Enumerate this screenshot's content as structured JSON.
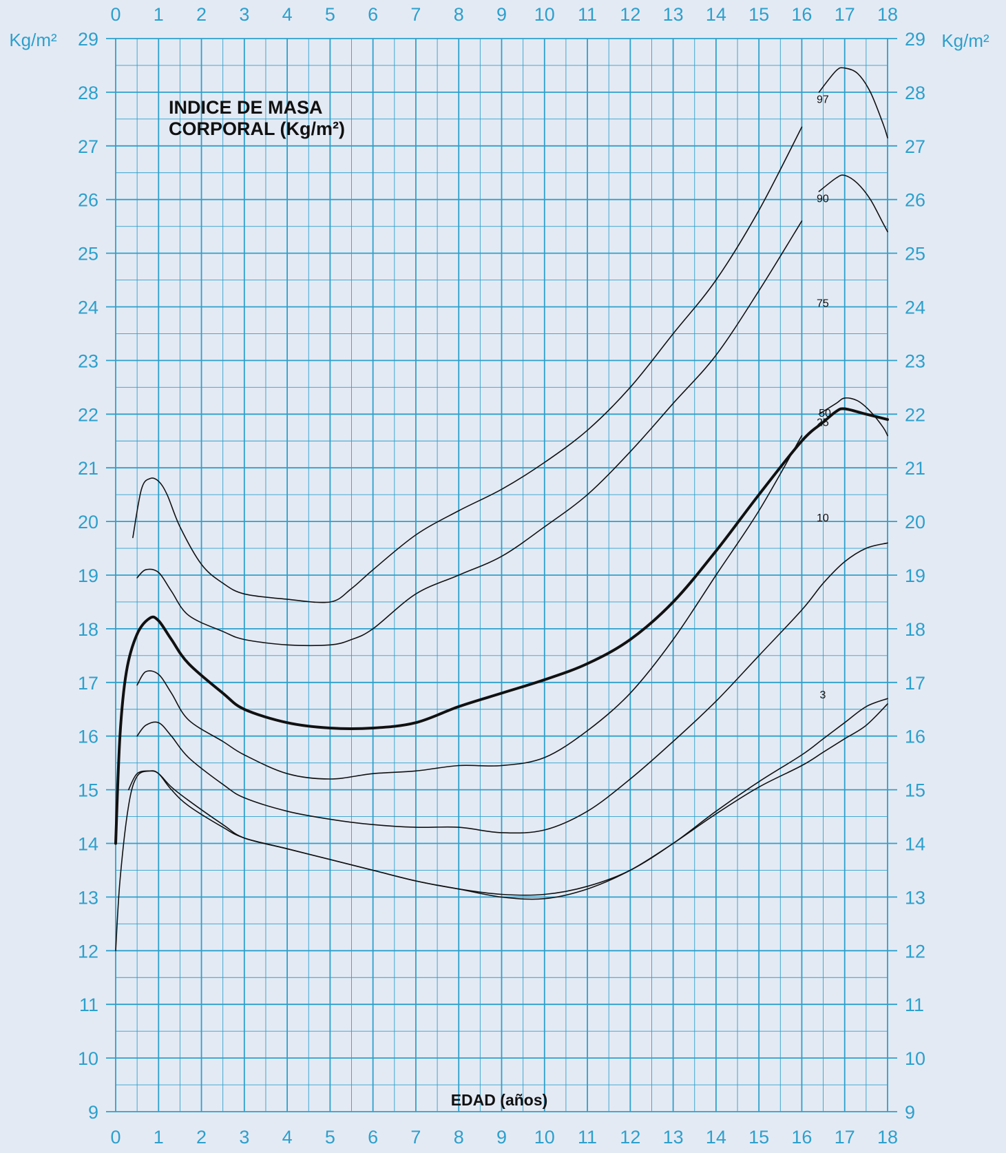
{
  "chart_data": {
    "type": "line",
    "title_lines": [
      "INDICE DE MASA",
      "CORPORAL (Kg/m²)"
    ],
    "xlabel": "EDAD (años)",
    "unit_left": "Kg/m²",
    "unit_right": "Kg/m²",
    "xlim": [
      0,
      18
    ],
    "ylim": [
      9,
      29
    ],
    "x_ticks": [
      "0",
      "1",
      "2",
      "3",
      "4",
      "5",
      "6",
      "7",
      "8",
      "9",
      "10",
      "11",
      "12",
      "13",
      "14",
      "15",
      "16",
      "17",
      "18"
    ],
    "y_ticks": [
      "9",
      "10",
      "11",
      "12",
      "13",
      "14",
      "15",
      "16",
      "17",
      "18",
      "19",
      "20",
      "21",
      "22",
      "23",
      "24",
      "25",
      "26",
      "27",
      "28",
      "29"
    ],
    "grid": true,
    "colors": {
      "background": "#e4eaf4",
      "grid": "#2ca0cc",
      "axis_text": "#2ca0cc",
      "curve": "#111111"
    },
    "series": [
      {
        "name": "97",
        "label_at": [
          16.2,
          27.8
        ],
        "segments": [
          [
            [
              0.4,
              19.7
            ],
            [
              0.6,
              20.6
            ],
            [
              0.8,
              20.8
            ],
            [
              1.0,
              20.75
            ],
            [
              1.2,
              20.5
            ],
            [
              1.5,
              19.9
            ],
            [
              2.0,
              19.2
            ],
            [
              2.5,
              18.85
            ],
            [
              3,
              18.65
            ],
            [
              4,
              18.55
            ],
            [
              5,
              18.5
            ],
            [
              5.5,
              18.75
            ],
            [
              6,
              19.1
            ],
            [
              7,
              19.75
            ],
            [
              8,
              20.2
            ],
            [
              9,
              20.6
            ],
            [
              10,
              21.1
            ],
            [
              11,
              21.7
            ],
            [
              12,
              22.5
            ],
            [
              13,
              23.5
            ],
            [
              14,
              24.5
            ],
            [
              15,
              25.8
            ],
            [
              16,
              27.35
            ]
          ],
          [
            [
              16.4,
              28.0
            ],
            [
              16.8,
              28.4
            ],
            [
              17.0,
              28.45
            ],
            [
              17.3,
              28.35
            ],
            [
              17.6,
              28.0
            ],
            [
              17.9,
              27.4
            ],
            [
              18.0,
              27.15
            ]
          ]
        ]
      },
      {
        "name": "90",
        "label_at": [
          16.2,
          25.95
        ],
        "segments": [
          [
            [
              0.5,
              18.95
            ],
            [
              0.7,
              19.1
            ],
            [
              1.0,
              19.05
            ],
            [
              1.3,
              18.7
            ],
            [
              1.7,
              18.25
            ],
            [
              2.5,
              17.95
            ],
            [
              3,
              17.8
            ],
            [
              4,
              17.7
            ],
            [
              5,
              17.7
            ],
            [
              5.5,
              17.8
            ],
            [
              6,
              18.0
            ],
            [
              7,
              18.65
            ],
            [
              8,
              19.0
            ],
            [
              9,
              19.35
            ],
            [
              10,
              19.9
            ],
            [
              11,
              20.5
            ],
            [
              12,
              21.3
            ],
            [
              13,
              22.2
            ],
            [
              14,
              23.1
            ],
            [
              15,
              24.3
            ],
            [
              16,
              25.6
            ]
          ],
          [
            [
              16.4,
              26.15
            ],
            [
              16.8,
              26.4
            ],
            [
              17.0,
              26.45
            ],
            [
              17.3,
              26.3
            ],
            [
              17.6,
              26.0
            ],
            [
              17.9,
              25.55
            ],
            [
              18.0,
              25.4
            ]
          ]
        ]
      },
      {
        "name": "75",
        "label_at": [
          16.2,
          24.0
        ],
        "segments": [
          [
            [
              0.5,
              16.95
            ],
            [
              0.7,
              17.2
            ],
            [
              1.0,
              17.15
            ],
            [
              1.3,
              16.8
            ],
            [
              1.7,
              16.3
            ],
            [
              2.5,
              15.9
            ],
            [
              3,
              15.65
            ],
            [
              4,
              15.3
            ],
            [
              5,
              15.2
            ],
            [
              6,
              15.3
            ],
            [
              7,
              15.35
            ],
            [
              8,
              15.45
            ],
            [
              9,
              15.45
            ],
            [
              10,
              15.6
            ],
            [
              11,
              16.1
            ],
            [
              12,
              16.8
            ],
            [
              13,
              17.8
            ],
            [
              14,
              19.0
            ],
            [
              15,
              20.2
            ],
            [
              16,
              21.6
            ]
          ],
          [
            [
              16.4,
              22.0
            ],
            [
              16.8,
              22.2
            ],
            [
              17.0,
              22.3
            ],
            [
              17.3,
              22.25
            ],
            [
              17.6,
              22.05
            ],
            [
              17.9,
              21.75
            ],
            [
              18.0,
              21.6
            ]
          ]
        ]
      },
      {
        "name": "50",
        "label_at": [
          16.25,
          21.95
        ],
        "segments": [
          [
            [
              0.0,
              14.0
            ],
            [
              0.1,
              16.0
            ],
            [
              0.25,
              17.2
            ],
            [
              0.5,
              17.9
            ],
            [
              0.8,
              18.2
            ],
            [
              1.0,
              18.15
            ],
            [
              1.3,
              17.8
            ],
            [
              1.7,
              17.35
            ],
            [
              2.5,
              16.8
            ],
            [
              3,
              16.5
            ],
            [
              4,
              16.25
            ],
            [
              5,
              16.15
            ],
            [
              6,
              16.15
            ],
            [
              7,
              16.25
            ],
            [
              8,
              16.55
            ],
            [
              9,
              16.8
            ],
            [
              10,
              17.05
            ],
            [
              11,
              17.35
            ],
            [
              12,
              17.8
            ],
            [
              13,
              18.5
            ],
            [
              14,
              19.45
            ],
            [
              15,
              20.5
            ],
            [
              16,
              21.5
            ],
            [
              16.5,
              21.85
            ],
            [
              16.8,
              22.05
            ],
            [
              17.0,
              22.1
            ],
            [
              17.5,
              22.0
            ],
            [
              18.0,
              21.9
            ]
          ]
        ]
      },
      {
        "name": "25",
        "label_at": [
          16.2,
          21.78
        ],
        "segments": [
          [
            [
              0.5,
              16.0
            ],
            [
              0.7,
              16.2
            ],
            [
              1.0,
              16.25
            ],
            [
              1.3,
              16.0
            ],
            [
              1.7,
              15.6
            ],
            [
              2.5,
              15.1
            ],
            [
              3,
              14.85
            ],
            [
              4,
              14.6
            ],
            [
              5,
              14.45
            ],
            [
              6,
              14.35
            ],
            [
              7,
              14.3
            ],
            [
              8,
              14.3
            ],
            [
              9,
              14.2
            ],
            [
              10,
              14.25
            ],
            [
              11,
              14.6
            ],
            [
              12,
              15.2
            ],
            [
              13,
              15.9
            ],
            [
              14,
              16.65
            ],
            [
              15,
              17.5
            ],
            [
              16,
              18.35
            ],
            [
              16.5,
              18.85
            ],
            [
              17.0,
              19.25
            ],
            [
              17.5,
              19.5
            ],
            [
              18.0,
              19.6
            ]
          ]
        ]
      },
      {
        "name": "10",
        "label_at": [
          16.2,
          20.0
        ],
        "segments": [
          [
            [
              0.3,
              15.0
            ],
            [
              0.5,
              15.3
            ],
            [
              0.8,
              15.35
            ],
            [
              1.0,
              15.3
            ],
            [
              1.3,
              15.05
            ],
            [
              1.7,
              14.8
            ],
            [
              2.5,
              14.35
            ],
            [
              3,
              14.1
            ],
            [
              4,
              13.9
            ],
            [
              5,
              13.7
            ],
            [
              6,
              13.5
            ],
            [
              7,
              13.3
            ],
            [
              8,
              13.15
            ],
            [
              9,
              13.05
            ],
            [
              10,
              13.05
            ],
            [
              11,
              13.2
            ],
            [
              12,
              13.5
            ],
            [
              13,
              14.0
            ],
            [
              14,
              14.6
            ],
            [
              15,
              15.15
            ],
            [
              16,
              15.65
            ],
            [
              16.5,
              15.95
            ],
            [
              17.0,
              16.25
            ],
            [
              17.5,
              16.55
            ],
            [
              18.0,
              16.7
            ]
          ]
        ]
      },
      {
        "name": "3",
        "label_at": [
          16.2,
          16.7
        ],
        "segments": [
          [
            [
              0.0,
              12.0
            ],
            [
              0.1,
              13.3
            ],
            [
              0.3,
              14.7
            ],
            [
              0.5,
              15.25
            ],
            [
              0.8,
              15.35
            ],
            [
              1.0,
              15.3
            ],
            [
              1.3,
              15.0
            ],
            [
              1.7,
              14.7
            ],
            [
              2.5,
              14.3
            ],
            [
              3,
              14.1
            ],
            [
              4,
              13.9
            ],
            [
              5,
              13.7
            ],
            [
              6,
              13.5
            ],
            [
              7,
              13.3
            ],
            [
              8,
              13.15
            ],
            [
              9,
              13.0
            ],
            [
              10,
              12.97
            ],
            [
              11,
              13.15
            ],
            [
              12,
              13.5
            ],
            [
              13,
              14.0
            ],
            [
              14,
              14.55
            ],
            [
              15,
              15.05
            ],
            [
              16,
              15.45
            ],
            [
              16.5,
              15.7
            ],
            [
              17.0,
              15.95
            ],
            [
              17.5,
              16.2
            ],
            [
              18.0,
              16.6
            ]
          ]
        ]
      }
    ]
  }
}
